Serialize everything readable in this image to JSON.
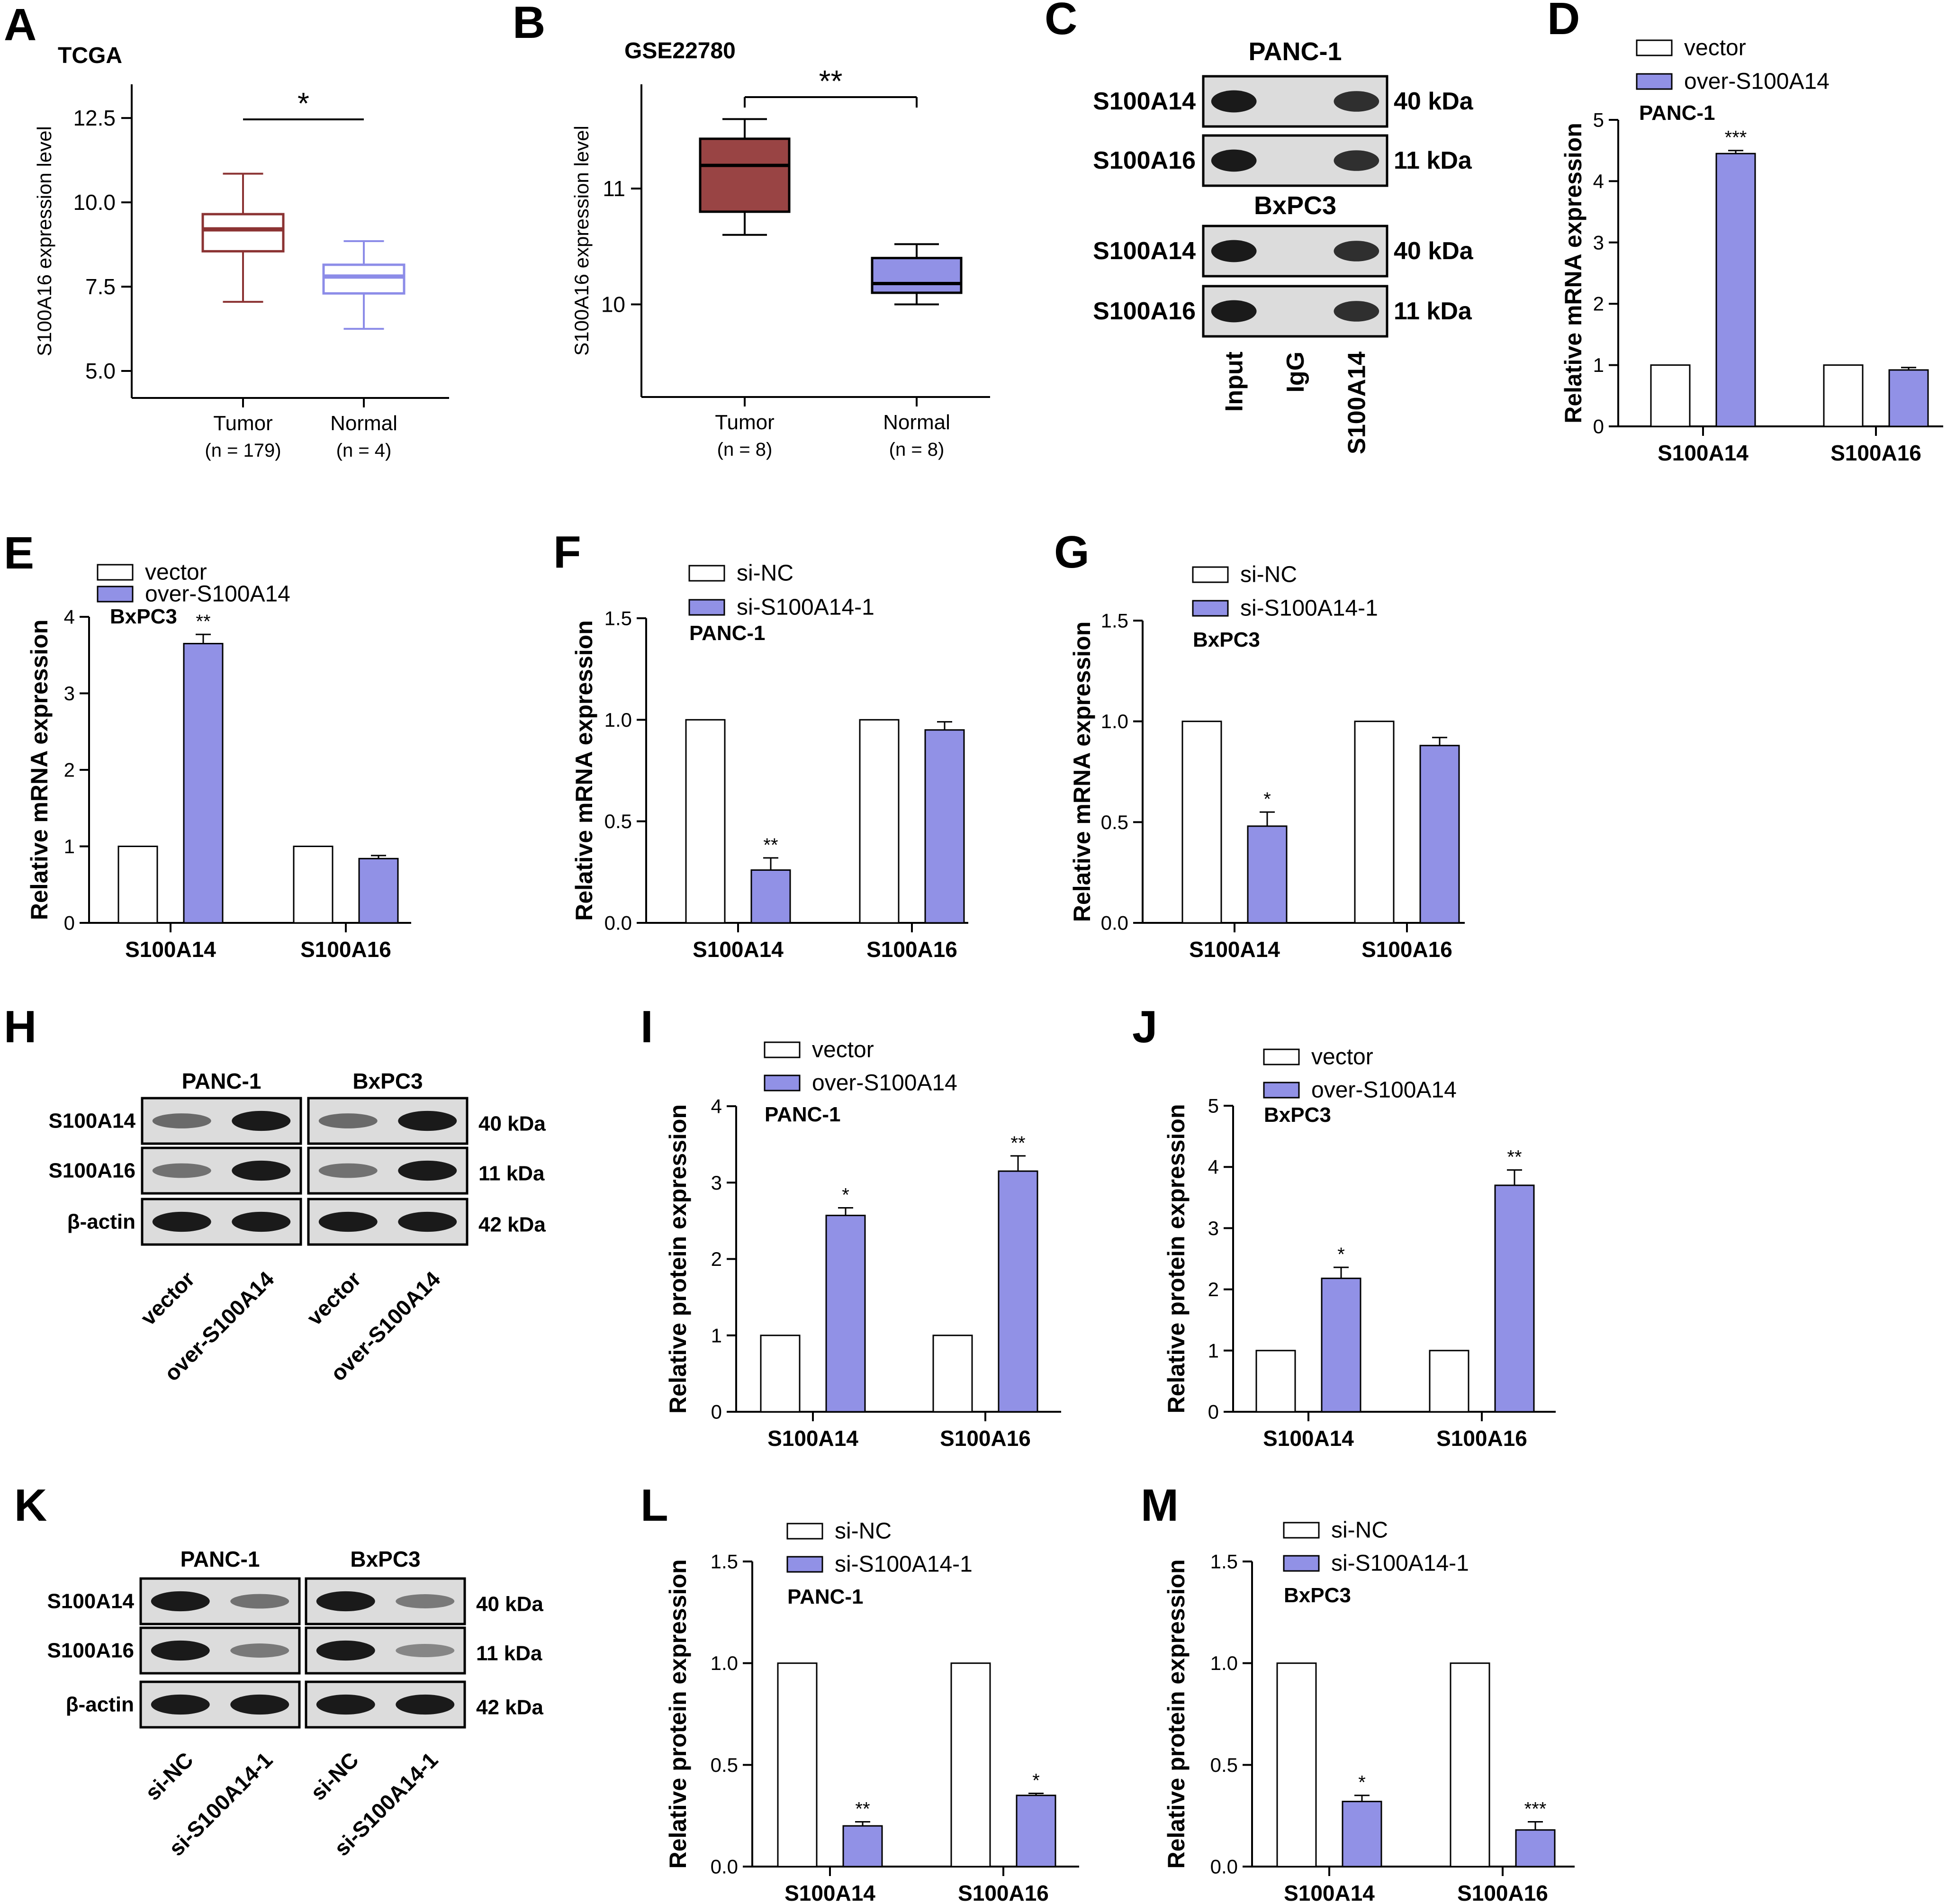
{
  "colors": {
    "purple": "#9191E6",
    "box_dark": "#994444",
    "box_dark_stroke": "#8B3333",
    "box_light_stroke": "#8C8CE8",
    "band": "#1a1a1a"
  },
  "chart_data": [
    {
      "type": "box",
      "panel": "A",
      "title": "TCGA",
      "ylabel": "S100A16 expression level",
      "y_ticks": [
        "5.0",
        "7.5",
        "10.0",
        "12.5"
      ],
      "ylim": [
        4.2,
        13.5
      ],
      "categories": [
        "Tumor",
        "Normal"
      ],
      "category_n": [
        "(n = 179)",
        "(n = 4)"
      ],
      "boxes": [
        {
          "name": "Tumor",
          "min": 7.05,
          "q1": 8.55,
          "median": 9.2,
          "q3": 9.65,
          "max": 10.85
        },
        {
          "name": "Normal",
          "min": 6.25,
          "q1": 7.3,
          "median": 7.8,
          "q3": 8.15,
          "max": 8.85
        }
      ],
      "significance": "*"
    },
    {
      "type": "box",
      "panel": "B",
      "title": "GSE22780",
      "ylabel": "S100A16 expression level",
      "y_ticks": [
        "10",
        "11"
      ],
      "ylim": [
        9.2,
        11.9
      ],
      "categories": [
        "Tumor",
        "Normal"
      ],
      "category_n": [
        "(n = 8)",
        "(n = 8)"
      ],
      "boxes": [
        {
          "name": "Tumor",
          "min": 10.6,
          "q1": 10.8,
          "median": 11.2,
          "q3": 11.43,
          "max": 11.6
        },
        {
          "name": "Normal",
          "min": 10.0,
          "q1": 10.1,
          "median": 10.18,
          "q3": 10.4,
          "max": 10.52
        }
      ],
      "significance": "**"
    },
    {
      "type": "bar",
      "panel": "D",
      "cell": "PANC-1",
      "ylabel": "Relative mRNA expression",
      "y_ticks": [
        "0",
        "1",
        "2",
        "3",
        "4",
        "5"
      ],
      "ylim": [
        0,
        5
      ],
      "categories": [
        "S100A14",
        "S100A16"
      ],
      "series": [
        {
          "name": "vector",
          "values": [
            1,
            1
          ]
        },
        {
          "name": "over-S100A14",
          "values": [
            4.45,
            0.92
          ]
        }
      ],
      "errors": [
        0.05,
        0.04
      ],
      "sig": [
        "***",
        ""
      ]
    },
    {
      "type": "bar",
      "panel": "E",
      "cell": "BxPC3",
      "ylabel": "Relative mRNA expression",
      "y_ticks": [
        "0",
        "1",
        "2",
        "3",
        "4"
      ],
      "ylim": [
        0,
        4
      ],
      "categories": [
        "S100A14",
        "S100A16"
      ],
      "series": [
        {
          "name": "vector",
          "values": [
            1,
            1
          ]
        },
        {
          "name": "over-S100A14",
          "values": [
            3.65,
            0.84
          ]
        }
      ],
      "errors": [
        0.12,
        0.04
      ],
      "sig": [
        "**",
        ""
      ]
    },
    {
      "type": "bar",
      "panel": "F",
      "cell": "PANC-1",
      "ylabel": "Relative mRNA expression",
      "y_ticks": [
        "0.0",
        "0.5",
        "1.0",
        "1.5"
      ],
      "ylim": [
        0,
        1.5
      ],
      "categories": [
        "S100A14",
        "S100A16"
      ],
      "series": [
        {
          "name": "si-NC",
          "values": [
            1,
            1
          ]
        },
        {
          "name": "si-S100A14-1",
          "values": [
            0.26,
            0.95
          ]
        }
      ],
      "errors": [
        0.06,
        0.04
      ],
      "sig": [
        "**",
        ""
      ]
    },
    {
      "type": "bar",
      "panel": "G",
      "cell": "BxPC3",
      "ylabel": "Relative mRNA expression",
      "y_ticks": [
        "0.0",
        "0.5",
        "1.0",
        "1.5"
      ],
      "ylim": [
        0,
        1.5
      ],
      "categories": [
        "S100A14",
        "S100A16"
      ],
      "series": [
        {
          "name": "si-NC",
          "values": [
            1,
            1
          ]
        },
        {
          "name": "si-S100A14-1",
          "values": [
            0.48,
            0.88
          ]
        }
      ],
      "errors": [
        0.07,
        0.04
      ],
      "sig": [
        "*",
        ""
      ]
    },
    {
      "type": "bar",
      "panel": "I",
      "cell": "PANC-1",
      "ylabel": "Relative protein expression",
      "y_ticks": [
        "0",
        "1",
        "2",
        "3",
        "4"
      ],
      "ylim": [
        0,
        4
      ],
      "categories": [
        "S100A14",
        "S100A16"
      ],
      "series": [
        {
          "name": "vector",
          "values": [
            1,
            1
          ]
        },
        {
          "name": "over-S100A14",
          "values": [
            2.57,
            3.15
          ]
        }
      ],
      "errors": [
        0.1,
        0.2
      ],
      "sig": [
        "*",
        "**"
      ]
    },
    {
      "type": "bar",
      "panel": "J",
      "cell": "BxPC3",
      "ylabel": "Relative protein expression",
      "y_ticks": [
        "0",
        "1",
        "2",
        "3",
        "4",
        "5"
      ],
      "ylim": [
        0,
        5
      ],
      "categories": [
        "S100A14",
        "S100A16"
      ],
      "series": [
        {
          "name": "vector",
          "values": [
            1,
            1
          ]
        },
        {
          "name": "over-S100A14",
          "values": [
            2.18,
            3.7
          ]
        }
      ],
      "errors": [
        0.18,
        0.25
      ],
      "sig": [
        "*",
        "**"
      ]
    },
    {
      "type": "bar",
      "panel": "L",
      "cell": "PANC-1",
      "ylabel": "Relative protein expression",
      "y_ticks": [
        "0.0",
        "0.5",
        "1.0",
        "1.5"
      ],
      "ylim": [
        0,
        1.5
      ],
      "categories": [
        "S100A14",
        "S100A16"
      ],
      "series": [
        {
          "name": "si-NC",
          "values": [
            1,
            1
          ]
        },
        {
          "name": "si-S100A14-1",
          "values": [
            0.2,
            0.35
          ]
        }
      ],
      "errors": [
        0.02,
        0.01
      ],
      "sig": [
        "**",
        "*"
      ]
    },
    {
      "type": "bar",
      "panel": "M",
      "cell": "BxPC3",
      "ylabel": "Relative protein expression",
      "y_ticks": [
        "0.0",
        "0.5",
        "1.0",
        "1.5"
      ],
      "ylim": [
        0,
        1.5
      ],
      "categories": [
        "S100A14",
        "S100A16"
      ],
      "series": [
        {
          "name": "si-NC",
          "values": [
            1,
            1
          ]
        },
        {
          "name": "si-S100A14-1",
          "values": [
            0.32,
            0.18
          ]
        }
      ],
      "errors": [
        0.03,
        0.04
      ],
      "sig": [
        "*",
        "***"
      ]
    }
  ],
  "blots": [
    {
      "panel": "C",
      "groups": [
        {
          "title": "PANC-1",
          "rows": [
            {
              "label": "S100A14",
              "kda": "40 kDa",
              "bands": [
                1,
                0,
                0.85
              ]
            },
            {
              "label": "S100A16",
              "kda": "11 kDa",
              "bands": [
                1,
                0,
                0.85
              ]
            }
          ]
        },
        {
          "title": "BxPC3",
          "rows": [
            {
              "label": "S100A14",
              "kda": "40 kDa",
              "bands": [
                1,
                0,
                0.85
              ]
            },
            {
              "label": "S100A16",
              "kda": "11 kDa",
              "bands": [
                1,
                0,
                0.85
              ]
            }
          ]
        }
      ],
      "lanes": [
        "Input",
        "IgG",
        "S100A14"
      ]
    },
    {
      "panel": "H",
      "cells": [
        "PANC-1",
        "BxPC3"
      ],
      "rows": [
        {
          "label": "S100A14",
          "kda": "40 kDa",
          "bands": [
            0.45,
            1,
            0.45,
            1
          ]
        },
        {
          "label": "S100A16",
          "kda": "11 kDa",
          "bands": [
            0.4,
            1,
            0.4,
            1
          ]
        },
        {
          "label": "β-actin",
          "kda": "42 kDa",
          "bands": [
            1,
            1,
            1,
            1
          ]
        }
      ],
      "lanes": [
        "vector",
        "over-S100A14",
        "vector",
        "over-S100A14"
      ]
    },
    {
      "panel": "K",
      "cells": [
        "PANC-1",
        "BxPC3"
      ],
      "rows": [
        {
          "label": "S100A14",
          "kda": "40 kDa",
          "bands": [
            1,
            0.4,
            1,
            0.35
          ]
        },
        {
          "label": "S100A16",
          "kda": "11 kDa",
          "bands": [
            1,
            0.35,
            1,
            0.25
          ]
        },
        {
          "label": "β-actin",
          "kda": "42 kDa",
          "bands": [
            1,
            1,
            1,
            1
          ]
        }
      ],
      "lanes": [
        "si-NC",
        "si-S100A14-1",
        "si-NC",
        "si-S100A14-1"
      ]
    }
  ]
}
